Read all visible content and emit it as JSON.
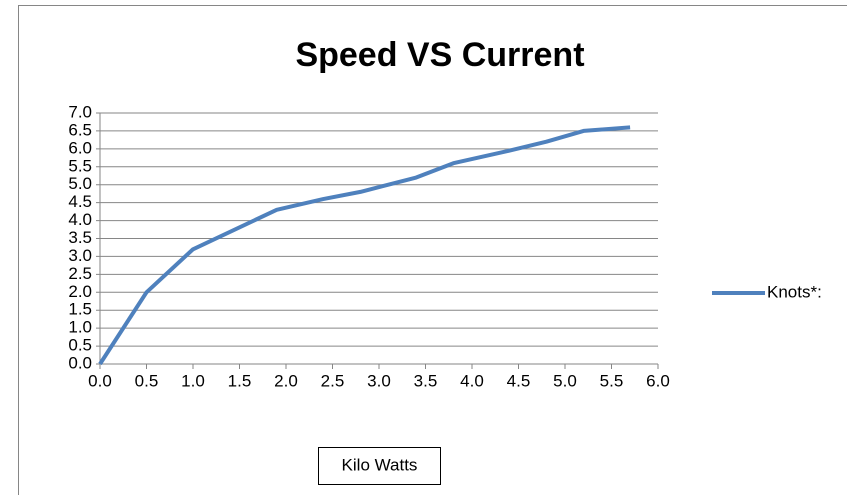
{
  "chart_data": {
    "type": "line",
    "title": "Speed VS Current",
    "xlabel": "Kilo Watts",
    "x": [
      0,
      0.5,
      1.0,
      1.9,
      2.4,
      2.8,
      3.4,
      3.8,
      4.4,
      4.8,
      5.2,
      5.7
    ],
    "series": [
      {
        "name": "Knots*:",
        "color": "#4f81bd",
        "values": [
          0,
          2.0,
          3.2,
          4.3,
          4.6,
          4.8,
          5.2,
          5.6,
          5.95,
          6.2,
          6.5,
          6.6
        ]
      }
    ],
    "xlim": [
      0,
      6
    ],
    "ylim": [
      0,
      7
    ],
    "xticks": [
      {
        "value": 0,
        "label": "0.0"
      },
      {
        "value": 0.5,
        "label": "0.5"
      },
      {
        "value": 1,
        "label": "1.0"
      },
      {
        "value": 1.5,
        "label": "1.5"
      },
      {
        "value": 2,
        "label": "2.0"
      },
      {
        "value": 2.5,
        "label": "2.5"
      },
      {
        "value": 3,
        "label": "3.0"
      },
      {
        "value": 3.5,
        "label": "3.5"
      },
      {
        "value": 4,
        "label": "4.0"
      },
      {
        "value": 4.5,
        "label": "4.5"
      },
      {
        "value": 5,
        "label": "5.0"
      },
      {
        "value": 5.5,
        "label": "5.5"
      },
      {
        "value": 6,
        "label": "6.0"
      }
    ],
    "yticks": [
      {
        "value": 0,
        "label": "0.0"
      },
      {
        "value": 0.5,
        "label": "0.5"
      },
      {
        "value": 1,
        "label": "1.0"
      },
      {
        "value": 1.5,
        "label": "1.5"
      },
      {
        "value": 2,
        "label": "2.0"
      },
      {
        "value": 2.5,
        "label": "2.5"
      },
      {
        "value": 3,
        "label": "3.0"
      },
      {
        "value": 3.5,
        "label": "3.5"
      },
      {
        "value": 4,
        "label": "4.0"
      },
      {
        "value": 4.5,
        "label": "4.5"
      },
      {
        "value": 5,
        "label": "5.0"
      },
      {
        "value": 5.5,
        "label": "5.5"
      },
      {
        "value": 6,
        "label": "6.0"
      },
      {
        "value": 6.5,
        "label": "6.5"
      },
      {
        "value": 7,
        "label": "7.0"
      }
    ],
    "grid": true,
    "legend": "right"
  }
}
